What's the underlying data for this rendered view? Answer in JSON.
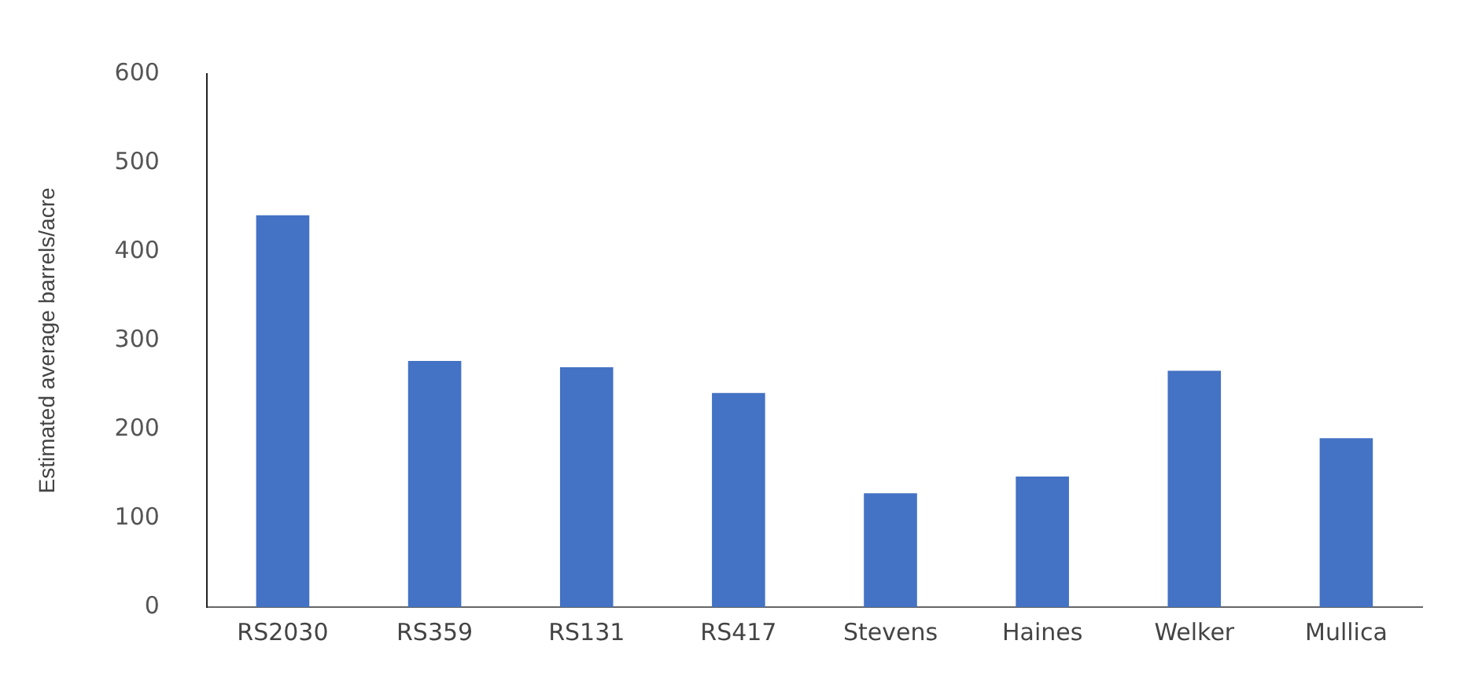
{
  "chart_data": {
    "type": "bar",
    "ylabel": "Estimated average barrels/acre",
    "categories": [
      "RS2030",
      "RS359",
      "RS131",
      "RS417",
      "Stevens",
      "Haines",
      "Welker",
      "Mullica"
    ],
    "values": [
      441,
      277,
      270,
      241,
      128,
      147,
      266,
      190
    ],
    "color": "#4472c4",
    "ylim": [
      0,
      600
    ],
    "yticks": [
      0,
      100,
      200,
      300,
      400,
      500,
      600
    ],
    "grid": false
  }
}
